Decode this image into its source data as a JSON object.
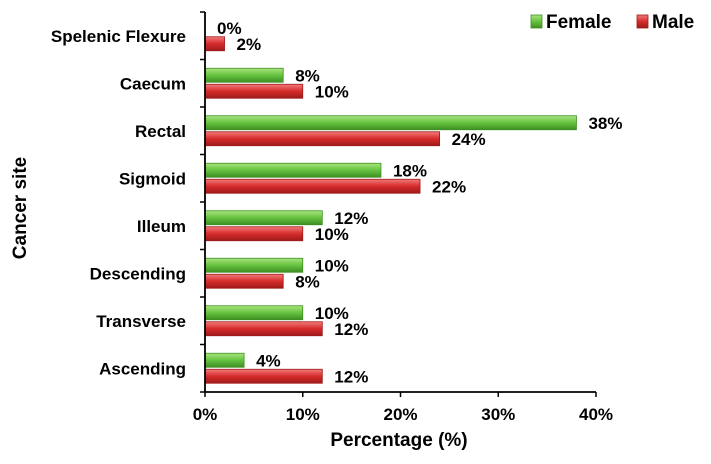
{
  "chart_data": {
    "type": "bar",
    "orientation": "horizontal",
    "xlabel": "Percentage (%)",
    "ylabel": "Cancer site",
    "xlim": [
      0,
      40
    ],
    "x_ticks": [
      "0%",
      "10%",
      "20%",
      "30%",
      "40%"
    ],
    "grid": false,
    "legend_position": "top-right",
    "categories": [
      "Spelenic Flexure",
      "Caecum",
      "Rectal",
      "Sigmoid",
      "Illeum",
      "Descending",
      "Transverse",
      "Ascending"
    ],
    "series": [
      {
        "name": "Female",
        "color": "#66c23f",
        "values": [
          0,
          8,
          38,
          18,
          12,
          10,
          10,
          4
        ],
        "labels": [
          "0%",
          "8%",
          "38%",
          "18%",
          "12%",
          "10%",
          "10%",
          "4%"
        ]
      },
      {
        "name": "Male",
        "color": "#d62b2b",
        "values": [
          2,
          10,
          24,
          22,
          10,
          8,
          12,
          12
        ],
        "labels": [
          "2%",
          "10%",
          "24%",
          "22%",
          "10%",
          "8%",
          "12%",
          "12%"
        ]
      }
    ]
  }
}
